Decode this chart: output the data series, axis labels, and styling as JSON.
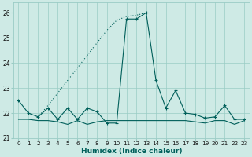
{
  "xlabel": "Humidex (Indice chaleur)",
  "xlim": [
    -0.5,
    23.5
  ],
  "ylim": [
    21.0,
    26.4
  ],
  "yticks": [
    21,
    22,
    23,
    24,
    25,
    26
  ],
  "xticks": [
    0,
    1,
    2,
    3,
    4,
    5,
    6,
    7,
    8,
    9,
    10,
    11,
    12,
    13,
    14,
    15,
    16,
    17,
    18,
    19,
    20,
    21,
    22,
    23
  ],
  "background_color": "#ceeae5",
  "grid_color": "#9accc5",
  "line_color": "#005f5a",
  "ramp_x": [
    2,
    3,
    4,
    5,
    6,
    7,
    8,
    9,
    10,
    11,
    12,
    13
  ],
  "ramp_y": [
    21.85,
    22.3,
    22.8,
    23.3,
    23.8,
    24.3,
    24.8,
    25.3,
    25.7,
    25.85,
    25.9,
    26.0
  ],
  "main_x": [
    0,
    1,
    2,
    3,
    4,
    5,
    6,
    7,
    8,
    9,
    10,
    11,
    12,
    13,
    14,
    15,
    16,
    17,
    18,
    19,
    20,
    21,
    22,
    23
  ],
  "main_y": [
    22.5,
    22.0,
    21.85,
    22.2,
    21.75,
    22.2,
    21.75,
    22.2,
    22.05,
    21.6,
    21.6,
    25.75,
    25.75,
    26.0,
    23.3,
    22.2,
    22.9,
    22.0,
    21.95,
    21.8,
    21.85,
    22.3,
    21.75,
    21.75
  ],
  "flat_x": [
    0,
    1,
    2,
    3,
    4,
    5,
    6,
    7,
    8,
    9,
    10,
    11,
    12,
    13,
    14,
    15,
    16,
    17,
    18,
    19,
    20,
    21,
    22,
    23
  ],
  "flat_y": [
    21.75,
    21.75,
    21.7,
    21.7,
    21.65,
    21.55,
    21.7,
    21.55,
    21.65,
    21.7,
    21.7,
    21.7,
    21.7,
    21.7,
    21.7,
    21.7,
    21.7,
    21.7,
    21.65,
    21.6,
    21.7,
    21.7,
    21.55,
    21.7
  ]
}
